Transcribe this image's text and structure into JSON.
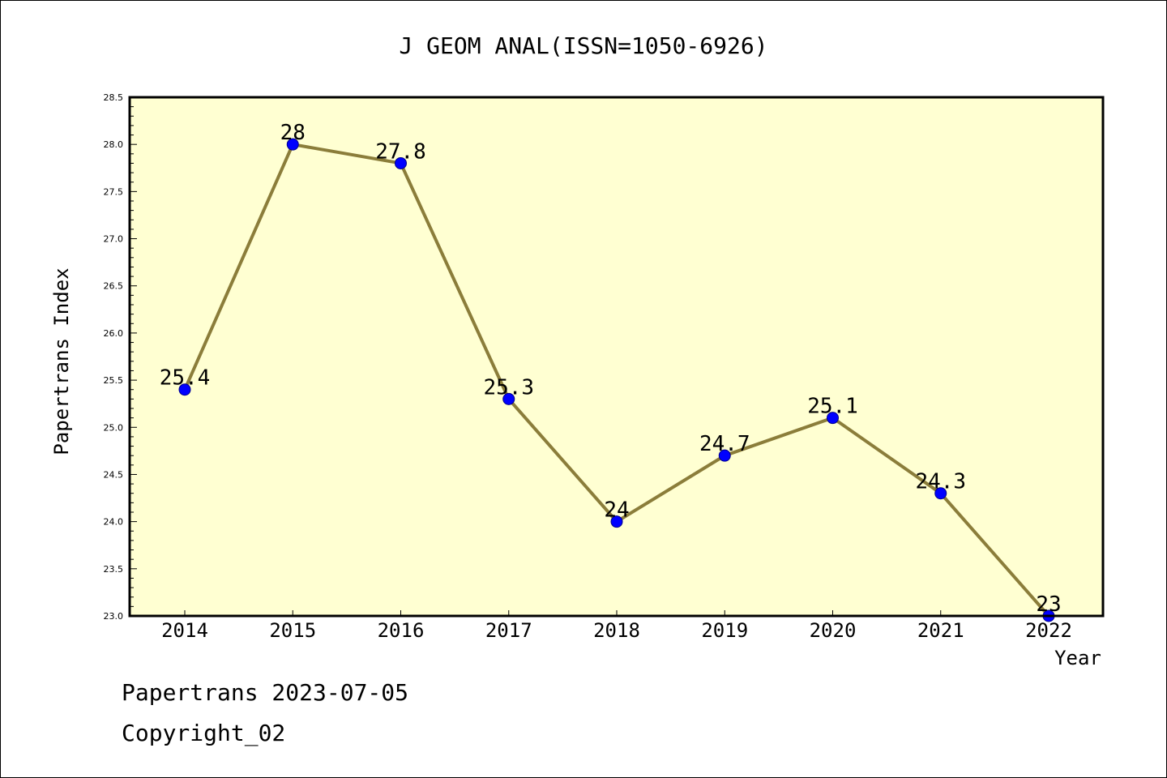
{
  "chart_data": {
    "type": "line",
    "title": "J GEOM ANAL(ISSN=1050-6926)",
    "xlabel": "Year",
    "ylabel": "Papertrans Index",
    "categories": [
      "2014",
      "2015",
      "2016",
      "2017",
      "2018",
      "2019",
      "2020",
      "2021",
      "2022"
    ],
    "series": [
      {
        "values": [
          25.4,
          28,
          27.8,
          25.3,
          24,
          24.7,
          25.1,
          24.3,
          23
        ],
        "data_labels": [
          "25.4",
          "28",
          "27.8",
          "25.3",
          "24",
          "24.7",
          "25.1",
          "24.3",
          "23"
        ],
        "line_color": "#8b7d3a",
        "marker_color": "#0000ff"
      }
    ],
    "ylim": [
      23.0,
      28.5
    ],
    "yticks": [
      "23.0",
      "23.5",
      "24.0",
      "24.5",
      "25.0",
      "25.5",
      "26.0",
      "26.5",
      "27.0",
      "27.5",
      "28.0",
      "28.5"
    ],
    "grid": false,
    "plot_background": "#ffffd2"
  },
  "footer": {
    "line1": "Papertrans 2023-07-05",
    "line2": "Copyright_02"
  }
}
